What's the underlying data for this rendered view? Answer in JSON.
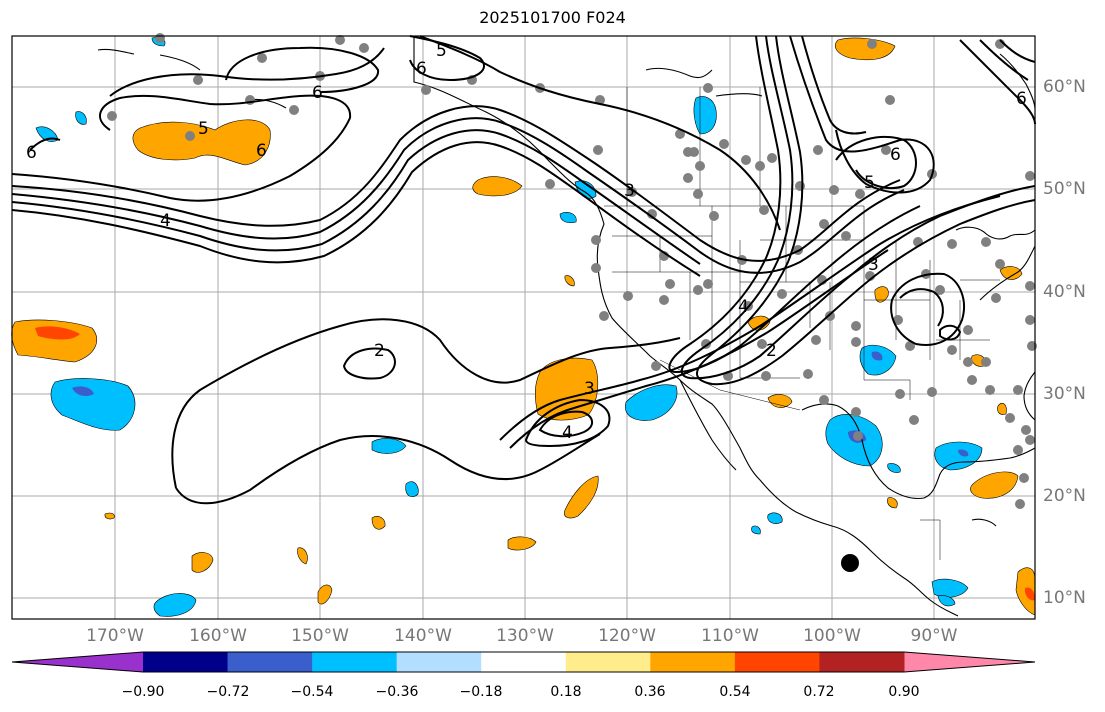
{
  "title": "2025101700 F024",
  "lon_labels": [
    "170°W",
    "160°W",
    "150°W",
    "140°W",
    "130°W",
    "120°W",
    "110°W",
    "100°W",
    "90°W"
  ],
  "lat_labels": [
    "60°N",
    "50°N",
    "40°N",
    "30°N",
    "20°N",
    "10°N"
  ],
  "colorbar": {
    "ticks": [
      "−0.90",
      "−0.72",
      "−0.54",
      "−0.36",
      "−0.18",
      "0.18",
      "0.36",
      "0.54",
      "0.72",
      "0.90"
    ],
    "colors": [
      "#9932cc",
      "#00008b",
      "#3a5fcd",
      "#00bfff",
      "#b2dfff",
      "#ffffff",
      "#ffec8b",
      "#ffa500",
      "#ff4500",
      "#b22222",
      "#ff88aa"
    ]
  },
  "contour_labels": [
    "5",
    "6",
    "6",
    "5",
    "6",
    "6",
    "4",
    "2",
    "3",
    "4",
    "3",
    "4",
    "2",
    "3",
    "5",
    "6",
    "6"
  ],
  "colors": {
    "positive_fill": "#ffa500",
    "negative_fill": "#00bfff",
    "strong_negative": "#3a5fcd",
    "strong_positive": "#ff4500",
    "station": "#808080",
    "grid": "#aaaaaa"
  }
}
